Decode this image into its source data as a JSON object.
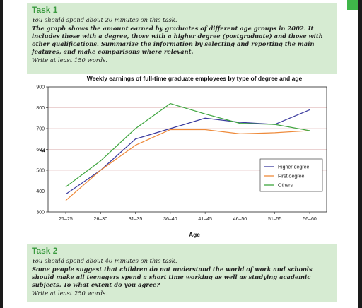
{
  "task1": {
    "title": "Task 1",
    "instruction": "You should spend about 20 minutes on this task.",
    "prompt": "The graph shows the amount earned by graduates of different age groups in 2002. It includes those with a degree, those with a higher degree (postgraduate) and those with other qualifications. Summarize the information by selecting and reporting the main features, and make comparisons where relevant.",
    "word_count": "Write at least 150 words."
  },
  "task2": {
    "title": "Task 2",
    "instruction": "You should spend about 40 minutes on this task.",
    "prompt": "Some people suggest that children do not understand the world of work and schools should make all teenagers spend a short time working as well as studying academic subjects. To what extent do you agree?",
    "word_count": "Write at least 250 words."
  },
  "colors": {
    "task_bg": "#d6ebd2",
    "task_title": "#3a9a3f",
    "green_tab": "#3fb649"
  },
  "chart_data": {
    "type": "line",
    "title": "Weekly earnings of full-time graduate employees by type of degree and age",
    "xlabel": "Age",
    "ylabel": "£",
    "categories": [
      "21–25",
      "26–30",
      "31–35",
      "36–40",
      "41–45",
      "46–50",
      "51–55",
      "56–60"
    ],
    "ylim": [
      300,
      900
    ],
    "yticks": [
      300,
      400,
      500,
      600,
      700,
      800,
      900
    ],
    "grid": "horizontal",
    "legend_position": "right",
    "series": [
      {
        "name": "Higher degree",
        "color": "#3b3b9e",
        "values": [
          385,
          500,
          650,
          700,
          750,
          730,
          720,
          790
        ]
      },
      {
        "name": "First degree",
        "color": "#ee8a3a",
        "values": [
          355,
          500,
          620,
          695,
          695,
          675,
          680,
          690
        ]
      },
      {
        "name": "Others",
        "color": "#3fa63f",
        "values": [
          420,
          545,
          700,
          820,
          770,
          725,
          720,
          690
        ]
      }
    ]
  }
}
